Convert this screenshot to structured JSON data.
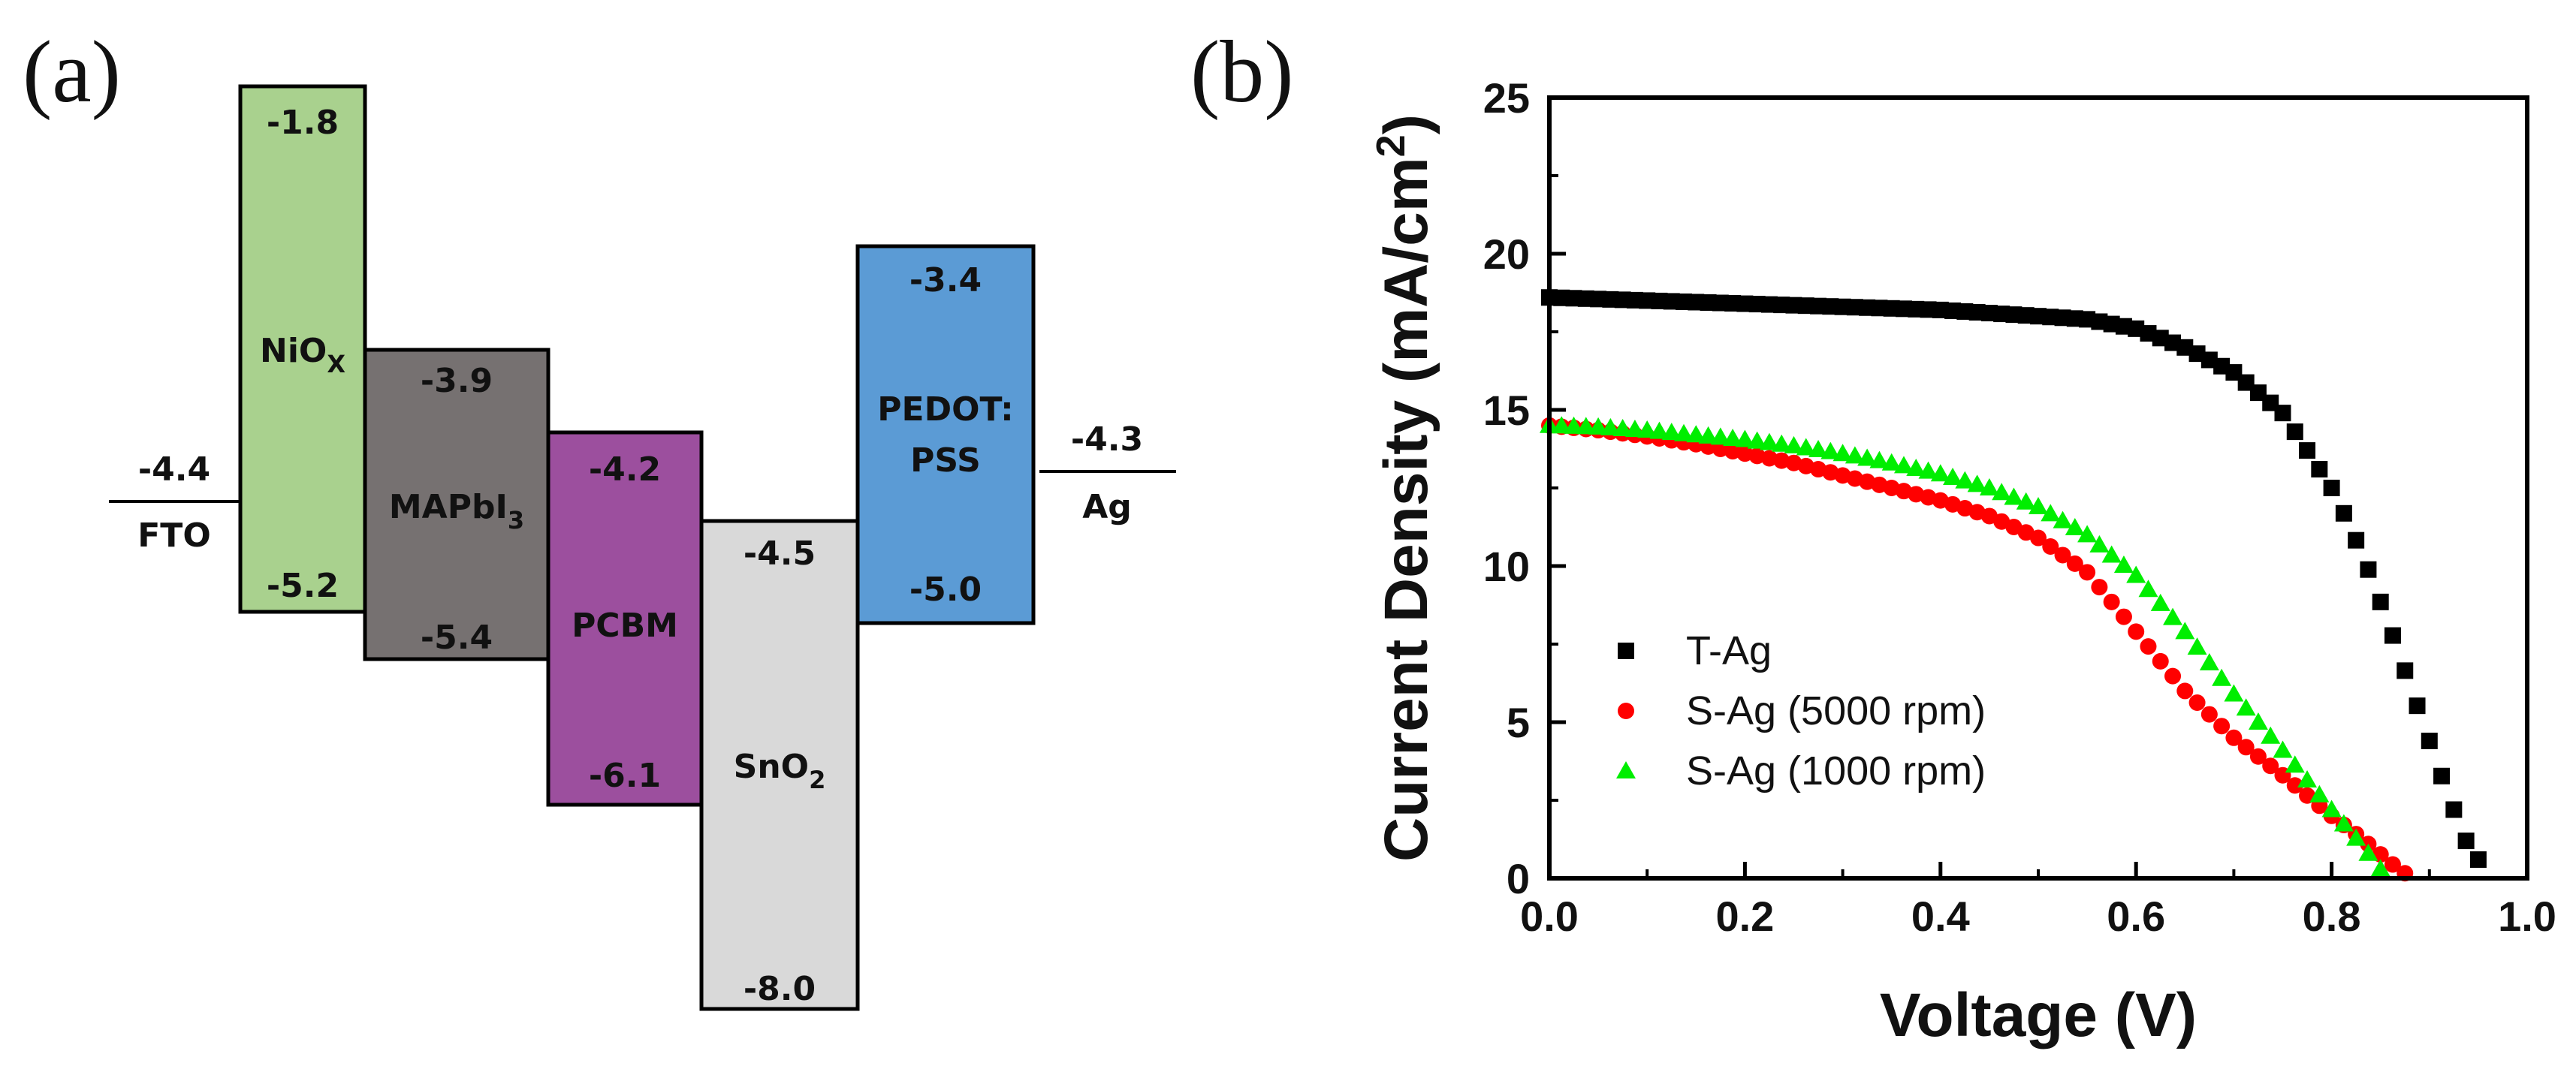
{
  "panel_a": {
    "label": "(a)",
    "electrodes": [
      {
        "name": "FTO",
        "level": "-4.4"
      },
      {
        "name": "Ag",
        "level": "-4.3"
      }
    ],
    "layers": [
      {
        "name": "NiO",
        "sub": "X",
        "suffix": "",
        "top": "-1.8",
        "bottom": "-5.2",
        "color": "#a9d18e"
      },
      {
        "name": "MAPbI",
        "sub": "3",
        "suffix": "",
        "top": "-3.9",
        "bottom": "-5.4",
        "color": "#767171"
      },
      {
        "name": "PCBM",
        "sub": "",
        "suffix": "",
        "top": "-4.2",
        "bottom": "-6.1",
        "color": "#9c4f9e"
      },
      {
        "name": "SnO",
        "sub": "2",
        "suffix": "",
        "top": "-4.5",
        "bottom": "-8.0",
        "color": "#d9d9d9"
      },
      {
        "name": "PEDOT:",
        "sub": "",
        "suffix": "PSS",
        "top": "-3.4",
        "bottom": "-5.0",
        "color": "#5b9bd5"
      }
    ]
  },
  "panel_b": {
    "label": "(b)"
  },
  "chart_data": {
    "type": "scatter",
    "title": "",
    "xlabel": "Voltage (V)",
    "ylabel": "Current Density (mA/cm",
    "ylabel_sup": "2",
    "ylabel_end": ")",
    "xlim": [
      0.0,
      1.0
    ],
    "ylim": [
      0,
      25
    ],
    "xticks": [
      "0.0",
      "0.2",
      "0.4",
      "0.6",
      "0.8",
      "1.0"
    ],
    "yticks": [
      "0",
      "5",
      "10",
      "15",
      "20",
      "25"
    ],
    "legend_position": "bottom-left",
    "series": [
      {
        "name": "T-Ag",
        "marker": "square",
        "color": "#000000",
        "x": [
          0.0,
          0.05,
          0.1,
          0.15,
          0.2,
          0.25,
          0.3,
          0.35,
          0.4,
          0.45,
          0.5,
          0.55,
          0.6,
          0.65,
          0.7,
          0.75,
          0.8,
          0.82,
          0.84,
          0.86,
          0.88,
          0.9,
          0.92,
          0.94,
          0.955,
          0.96
        ],
        "y": [
          18.6,
          18.55,
          18.5,
          18.45,
          18.4,
          18.35,
          18.3,
          18.25,
          18.2,
          18.1,
          18.0,
          17.9,
          17.6,
          17.0,
          16.2,
          14.9,
          12.5,
          11.2,
          9.7,
          8.0,
          6.2,
          4.4,
          2.6,
          1.0,
          0.4,
          0.2
        ]
      },
      {
        "name": "S-Ag (5000 rpm)",
        "marker": "circle",
        "color": "#ff0000",
        "x": [
          0.0,
          0.05,
          0.1,
          0.15,
          0.2,
          0.25,
          0.3,
          0.35,
          0.4,
          0.45,
          0.5,
          0.55,
          0.6,
          0.65,
          0.7,
          0.75,
          0.8,
          0.83,
          0.86,
          0.88
        ],
        "y": [
          14.5,
          14.35,
          14.15,
          13.9,
          13.6,
          13.3,
          12.9,
          12.5,
          12.1,
          11.6,
          10.9,
          9.8,
          7.9,
          6.0,
          4.5,
          3.3,
          2.0,
          1.3,
          0.5,
          0.05
        ]
      },
      {
        "name": "S-Ag (1000 rpm)",
        "marker": "triangle",
        "color": "#00ee00",
        "x": [
          0.0,
          0.05,
          0.1,
          0.15,
          0.2,
          0.25,
          0.3,
          0.35,
          0.4,
          0.45,
          0.5,
          0.55,
          0.6,
          0.65,
          0.7,
          0.75,
          0.8,
          0.83,
          0.85,
          0.86
        ],
        "y": [
          14.5,
          14.45,
          14.35,
          14.2,
          14.05,
          13.85,
          13.6,
          13.3,
          12.95,
          12.5,
          11.9,
          11.0,
          9.7,
          7.9,
          5.9,
          4.1,
          2.2,
          1.1,
          0.3,
          0.05
        ]
      }
    ]
  }
}
